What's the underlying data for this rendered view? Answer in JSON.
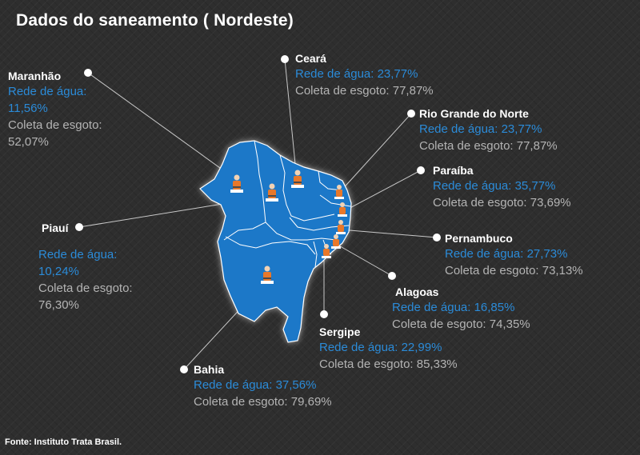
{
  "title": "Dados do saneamento ( Nordeste)",
  "source": "Fonte: Instituto Trata Brasil.",
  "colors": {
    "map_fill": "#1f78c8",
    "water_text": "#2b8bd8",
    "sewer_text": "#b4b4b4",
    "background": "#2e2e2e",
    "marker": "#e8782a"
  },
  "states": {
    "maranhao": {
      "name": "Maranhão",
      "water": "Rede de água: 11,56%",
      "sewer": "Coleta de esgoto: 52,07%"
    },
    "ceara": {
      "name": "Ceará",
      "water": "Rede de água: 23,77%",
      "sewer": "Coleta de esgoto: 77,87%"
    },
    "rgn": {
      "name": "Rio Grande do Norte",
      "water": "Rede de água: 23,77%",
      "sewer": "Coleta de esgoto: 77,87%"
    },
    "paraiba": {
      "name": "Paraíba",
      "water": "Rede de água:  35,77%",
      "sewer": "Coleta de esgoto:  73,69%"
    },
    "pernambuco": {
      "name": "Pernambuco",
      "water": "Rede de água:  27,73%",
      "sewer": "Coleta de esgoto:  73,13%"
    },
    "alagoas": {
      "name": "Alagoas",
      "water": "Rede de água: 16,85%",
      "sewer": "Coleta de esgoto: 74,35%"
    },
    "sergipe": {
      "name": "Sergipe",
      "water": "Rede de água: 22,99%",
      "sewer": "Coleta de esgoto:  85,33%"
    },
    "bahia": {
      "name": "Bahia",
      "water": "Rede de água: 37,56%",
      "sewer": "Coleta de esgoto:   79,69%"
    },
    "piaui": {
      "name": "Piauí",
      "water": "Rede de água: 10,24%",
      "sewer": "Coleta de esgoto: 76,30%"
    }
  }
}
